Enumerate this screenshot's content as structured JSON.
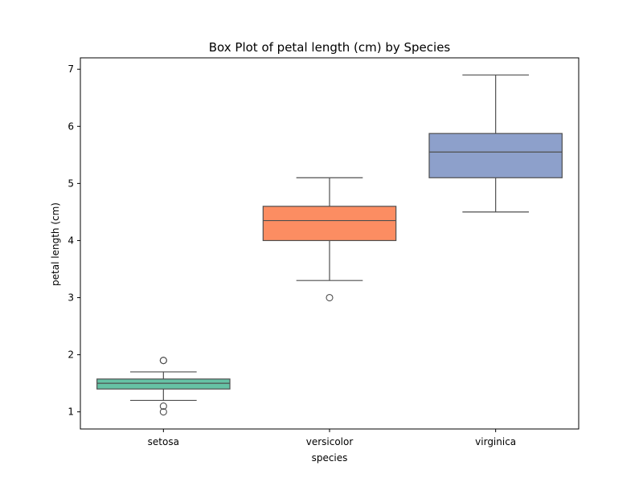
{
  "chart_data": {
    "type": "box",
    "title": "Box Plot of petal length (cm) by Species",
    "xlabel": "species",
    "ylabel": "petal length (cm)",
    "ylim": [
      0.7,
      7.2
    ],
    "yticks": [
      1,
      2,
      3,
      4,
      5,
      6,
      7
    ],
    "ytick_labels": [
      "1",
      "2",
      "3",
      "4",
      "5",
      "6",
      "7"
    ],
    "grid": false,
    "categories": [
      "setosa",
      "versicolor",
      "virginica"
    ],
    "boxes": [
      {
        "category": "setosa",
        "whisker_low": 1.2,
        "q1": 1.4,
        "median": 1.5,
        "q3": 1.575,
        "whisker_high": 1.7,
        "outliers": [
          1.0,
          1.1,
          1.9,
          1.9
        ],
        "color": "#66c2a5"
      },
      {
        "category": "versicolor",
        "whisker_low": 3.3,
        "q1": 4.0,
        "median": 4.35,
        "q3": 4.6,
        "whisker_high": 5.1,
        "outliers": [
          3.0
        ],
        "color": "#fc8d62"
      },
      {
        "category": "virginica",
        "whisker_low": 4.5,
        "q1": 5.1,
        "median": 5.55,
        "q3": 5.875,
        "whisker_high": 6.9,
        "outliers": [],
        "color": "#8da0cb"
      }
    ],
    "line_color": "#4f4f4f"
  }
}
